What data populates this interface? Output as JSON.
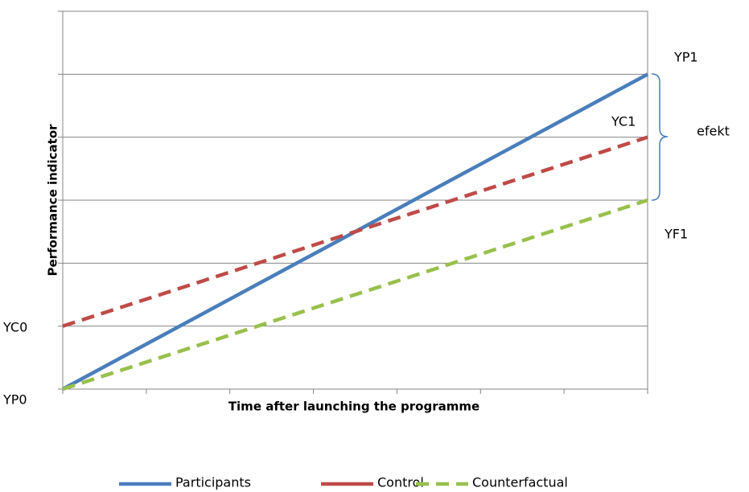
{
  "chart_data": {
    "type": "line",
    "x_label": "Time after launching  the programme",
    "y_label": "Performance indicator",
    "x": [
      0,
      7
    ],
    "series": [
      {
        "name": "Participants",
        "color": "#4a7ebb",
        "dash": false,
        "values": [
          0,
          5
        ]
      },
      {
        "name": "Control",
        "color": "#be4b48",
        "dash": true,
        "values": [
          1,
          4
        ]
      },
      {
        "name": "Counterfactual",
        "color": "#98c04c",
        "dash": true,
        "values": [
          0,
          3
        ]
      }
    ],
    "xlim": [
      0,
      7
    ],
    "xticks": [
      0,
      1,
      2,
      3,
      4,
      5,
      6,
      7
    ],
    "ylim": [
      0,
      6
    ],
    "yticks": [
      0,
      1,
      2,
      3,
      4,
      5,
      6
    ],
    "grid": true,
    "legend": "bottom",
    "annotations": [
      "YP1",
      "YC1",
      "efekt",
      "YF1",
      "YC0",
      "YP0"
    ]
  }
}
